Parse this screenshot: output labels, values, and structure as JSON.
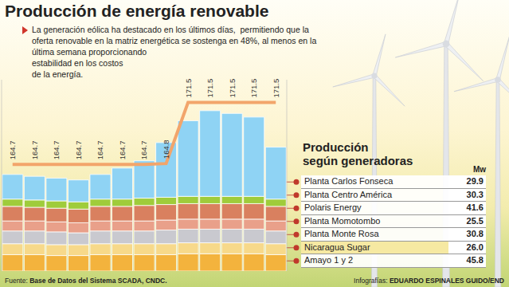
{
  "chart_data": {
    "type": "bar",
    "title": "Producción de energía renovable",
    "subtitle": [
      "La generación eólica ha destacado en los últimos días,  permitiendo que la",
      "oferta renovable en la matriz energética se sostenga en 48%, al menos en la",
      "última semana proporcionando",
      "estabilidad en los costos",
      "de la energía."
    ],
    "categories": [
      null,
      null,
      null,
      null,
      null,
      null,
      null,
      null,
      null,
      null,
      null,
      null,
      null
    ],
    "stacked": true,
    "grid": false,
    "tick_labels": false,
    "ylim": [
      0,
      210
    ],
    "y2lim": [
      153,
      174
    ],
    "series": [
      {
        "name": "Amayo 1 y 2",
        "type": "bar",
        "color": "#f3b33d",
        "mw": "45.8",
        "values": [
          18,
          18,
          17,
          17,
          18,
          18,
          18,
          18,
          19,
          19,
          19,
          19,
          18
        ]
      },
      {
        "name": "Nicaragua Sugar",
        "type": "bar",
        "color": "#f7d98a",
        "mw": "26.0",
        "values": [
          12,
          12,
          12,
          12,
          12,
          12,
          12,
          12,
          12,
          12,
          12,
          12,
          12
        ]
      },
      {
        "name": "Planta Monte Rosa",
        "type": "bar",
        "color": "#c9c9cf",
        "mw": "30.8",
        "values": [
          14,
          14,
          14,
          13,
          14,
          14,
          14,
          15,
          15,
          15,
          15,
          15,
          14
        ]
      },
      {
        "name": "Planta Momotombo",
        "type": "bar",
        "color": "#e9a08a",
        "mw": "25.5",
        "values": [
          11,
          11,
          11,
          11,
          11,
          11,
          11,
          11,
          11,
          11,
          11,
          11,
          11
        ]
      },
      {
        "name": "Polaris Energy",
        "type": "bar",
        "color": "#d9805f",
        "mw": "41.6",
        "values": [
          16,
          15,
          15,
          15,
          16,
          16,
          17,
          17,
          17,
          17,
          17,
          17,
          16
        ]
      },
      {
        "name": "Planta Centro América",
        "type": "bar",
        "color": "#9fcc3b",
        "mw": "30.3",
        "values": [
          8,
          8,
          8,
          8,
          8,
          8,
          8,
          8,
          8,
          8,
          8,
          8,
          8
        ]
      },
      {
        "name": "Planta Carlos Fonseca",
        "type": "bar",
        "color": "#8fd3f4",
        "mw": "29.9",
        "values": [
          27,
          26,
          25,
          24,
          27,
          34,
          41,
          60,
          83,
          94,
          91,
          87,
          57
        ]
      },
      {
        "type": "line",
        "axis": "y2",
        "color": "#f2a56b",
        "data_labels": true,
        "values": [
          164.7,
          164.7,
          164.7,
          164.7,
          164.7,
          164.7,
          164.7,
          164.8,
          171.5,
          171.5,
          171.5,
          171.5,
          171.5
        ]
      }
    ],
    "table": {
      "title": [
        "Producción",
        "según generadoras"
      ],
      "unit": "Mw"
    },
    "footer": {
      "source_label": "Fuente:",
      "source": "Base de Datos del Sistema SCADA, CNDC.",
      "credit_label": "Infografías:",
      "credit": "EDUARDO ESPINALES GUIDO/END"
    }
  }
}
